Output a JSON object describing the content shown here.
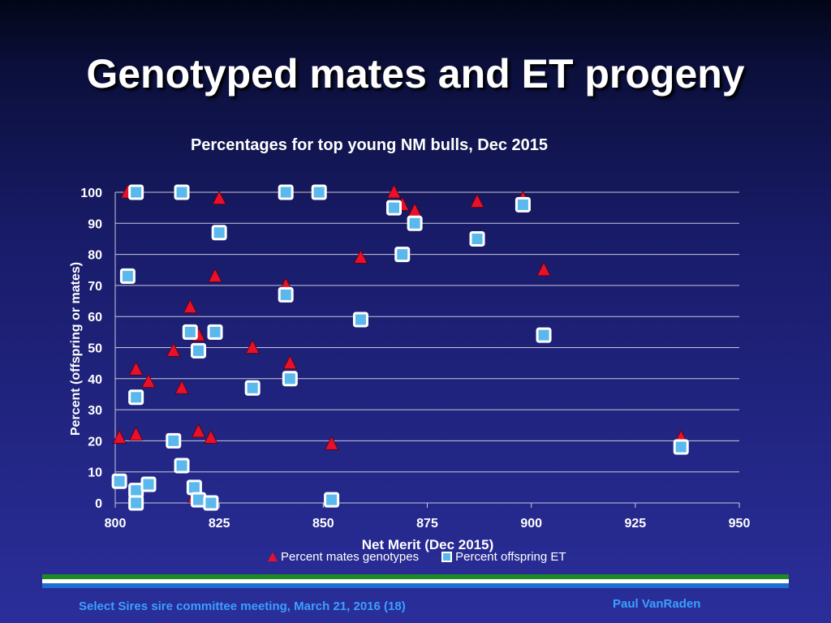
{
  "slide": {
    "title": "Genotyped mates and ET progeny",
    "footer_left": "Select Sires sire committee meeting, March 21, 2016 (18)",
    "footer_right": "Paul VanRaden"
  },
  "colors": {
    "mates": "#e8102a",
    "offspring": "#5ab8ec",
    "band_green": "#1e8a26",
    "band_blue": "#1f6fd0"
  },
  "chart_data": {
    "type": "scatter",
    "title": "Percentages for top young NM bulls, Dec 2015",
    "xlabel": "Net Merit (Dec 2015)",
    "ylabel": "Percent (offspring or mates)",
    "xlim": [
      800,
      950
    ],
    "ylim": [
      0,
      100
    ],
    "xticks": [
      800,
      825,
      850,
      875,
      900,
      925,
      950
    ],
    "yticks": [
      0,
      10,
      20,
      30,
      40,
      50,
      60,
      70,
      80,
      90,
      100
    ],
    "grid": "horizontal",
    "legend": "bottom",
    "series": [
      {
        "name": "Percent mates genotypes",
        "marker": "triangle",
        "points": [
          [
            801,
            21
          ],
          [
            803,
            100
          ],
          [
            805,
            22
          ],
          [
            805,
            43
          ],
          [
            808,
            39
          ],
          [
            814,
            49
          ],
          [
            816,
            37
          ],
          [
            818,
            63
          ],
          [
            819,
            2
          ],
          [
            820,
            54
          ],
          [
            820,
            23
          ],
          [
            823,
            21
          ],
          [
            824,
            73
          ],
          [
            825,
            98
          ],
          [
            833,
            50
          ],
          [
            841,
            70
          ],
          [
            842,
            45
          ],
          [
            852,
            19
          ],
          [
            859,
            79
          ],
          [
            867,
            100
          ],
          [
            869,
            96
          ],
          [
            872,
            94
          ],
          [
            887,
            97
          ],
          [
            898,
            98
          ],
          [
            903,
            75
          ],
          [
            936,
            21
          ]
        ]
      },
      {
        "name": "Percent offspring ET",
        "marker": "square",
        "points": [
          [
            801,
            7
          ],
          [
            803,
            73
          ],
          [
            805,
            100
          ],
          [
            805,
            34
          ],
          [
            805,
            4
          ],
          [
            805,
            0
          ],
          [
            808,
            6
          ],
          [
            814,
            20
          ],
          [
            816,
            12
          ],
          [
            816,
            100
          ],
          [
            818,
            55
          ],
          [
            819,
            5
          ],
          [
            820,
            49
          ],
          [
            820,
            1
          ],
          [
            823,
            0
          ],
          [
            824,
            55
          ],
          [
            825,
            87
          ],
          [
            833,
            37
          ],
          [
            841,
            100
          ],
          [
            841,
            67
          ],
          [
            842,
            40
          ],
          [
            849,
            100
          ],
          [
            852,
            1
          ],
          [
            859,
            59
          ],
          [
            867,
            95
          ],
          [
            869,
            80
          ],
          [
            872,
            90
          ],
          [
            887,
            85
          ],
          [
            898,
            96
          ],
          [
            903,
            54
          ],
          [
            936,
            18
          ]
        ]
      }
    ]
  }
}
